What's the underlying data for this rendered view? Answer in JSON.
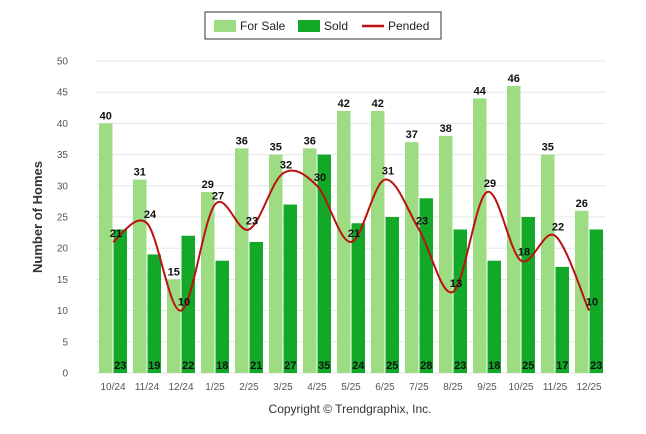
{
  "chart_data": {
    "type": "bar",
    "categories": [
      "10/24",
      "11/24",
      "12/24",
      "1/25",
      "2/25",
      "3/25",
      "4/25",
      "5/25",
      "6/25",
      "7/25",
      "8/25",
      "9/25",
      "10/25",
      "11/25",
      "12/25"
    ],
    "series": [
      {
        "name": "For Sale",
        "type": "bar",
        "color": "#9edc83",
        "values": [
          40,
          31,
          15,
          29,
          36,
          35,
          36,
          42,
          42,
          37,
          38,
          44,
          46,
          35,
          26
        ]
      },
      {
        "name": "Sold",
        "type": "bar",
        "color": "#14a829",
        "values": [
          23,
          19,
          22,
          18,
          21,
          27,
          35,
          24,
          25,
          28,
          23,
          18,
          25,
          17,
          23
        ]
      },
      {
        "name": "Pended",
        "type": "line",
        "color": "#bb1111",
        "values": [
          21,
          24,
          10,
          27,
          23,
          32,
          30,
          21,
          31,
          23,
          13,
          29,
          18,
          22,
          10
        ]
      }
    ],
    "xlabel": "",
    "ylabel": "Number of Homes",
    "ylim": [
      0,
      50
    ],
    "yticks": [
      0,
      5,
      10,
      15,
      20,
      25,
      30,
      35,
      40,
      45,
      50
    ],
    "grid": true,
    "legend": "top-center",
    "copyright": "Copyright © Trendgraphix, Inc."
  }
}
